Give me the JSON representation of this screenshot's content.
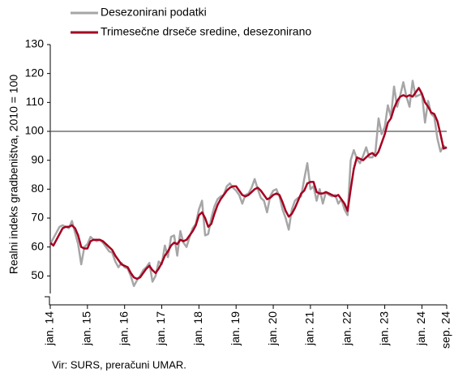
{
  "chart_data": {
    "type": "line",
    "y_label": "Realni indeks gradbeništva, 2010 = 100",
    "source": "Vir: SURS, preračuni UMAR.",
    "categories": [
      "jan. 14",
      null,
      null,
      null,
      null,
      null,
      null,
      null,
      null,
      null,
      null,
      null,
      "jan. 15",
      null,
      null,
      null,
      null,
      null,
      null,
      null,
      null,
      null,
      null,
      null,
      "jan. 16",
      null,
      null,
      null,
      null,
      null,
      null,
      null,
      null,
      null,
      null,
      null,
      "jan. 17",
      null,
      null,
      null,
      null,
      null,
      null,
      null,
      null,
      null,
      null,
      null,
      "jan. 18",
      null,
      null,
      null,
      null,
      null,
      null,
      null,
      null,
      null,
      null,
      null,
      "jan. 19",
      null,
      null,
      null,
      null,
      null,
      null,
      null,
      null,
      null,
      null,
      null,
      "jan. 20",
      null,
      null,
      null,
      null,
      null,
      null,
      null,
      null,
      null,
      null,
      null,
      "jan. 21",
      null,
      null,
      null,
      null,
      null,
      null,
      null,
      null,
      null,
      null,
      null,
      "jan. 22",
      null,
      null,
      null,
      null,
      null,
      null,
      null,
      null,
      null,
      null,
      null,
      "jan. 23",
      null,
      null,
      null,
      null,
      null,
      null,
      null,
      null,
      null,
      null,
      null,
      "jan. 24",
      null,
      null,
      null,
      null,
      null,
      null,
      null,
      "sep. 24"
    ],
    "series": [
      {
        "name": "Desezonirani podatki",
        "color": "#a6a6a6",
        "values": [
          61,
          63,
          65,
          67,
          67.5,
          67,
          66.5,
          69,
          65,
          61,
          54,
          60,
          61,
          63.5,
          62.5,
          62,
          62.5,
          61.5,
          60,
          58.5,
          58,
          55,
          53,
          54.5,
          53,
          52.5,
          50,
          46.5,
          48.5,
          50,
          52,
          53,
          54.5,
          48,
          50,
          55,
          54,
          60.5,
          56.5,
          63.5,
          64,
          57,
          65.5,
          61.5,
          60,
          63.5,
          66.5,
          68,
          73,
          76,
          64,
          64.5,
          70,
          74,
          76.5,
          77.5,
          78,
          81,
          82,
          80.5,
          79.5,
          78,
          75,
          78,
          78.5,
          80.5,
          83.5,
          80,
          77,
          76,
          72,
          77.5,
          79.5,
          80,
          77.5,
          73,
          70,
          66,
          73,
          76,
          77,
          77.5,
          83.5,
          89,
          80,
          81,
          76,
          80,
          75,
          79,
          78,
          77.5,
          78,
          75,
          76.5,
          73,
          71,
          90,
          93.5,
          90.5,
          89,
          91.5,
          94.5,
          91,
          91,
          93,
          104.5,
          99,
          101.5,
          109,
          105,
          115.5,
          108.5,
          112.5,
          117,
          112,
          108.5,
          117.5,
          112,
          112.5,
          113,
          103,
          110.5,
          106,
          105,
          97.5,
          93,
          95,
          94
        ]
      },
      {
        "name": "Trimesečne drseče sredine, desezonirano",
        "color": "#a50021",
        "values": [
          61.5,
          60.5,
          62.5,
          64.5,
          66.5,
          67,
          67,
          67.5,
          66.5,
          64,
          60,
          59.5,
          59.5,
          62,
          62.5,
          62.5,
          62.5,
          62,
          61,
          60,
          59,
          57,
          55.5,
          54,
          53.5,
          53,
          51,
          49.5,
          49,
          49.5,
          51,
          52.5,
          53.5,
          52,
          51,
          52.5,
          54.5,
          57,
          58.5,
          60.5,
          61.5,
          61,
          62.5,
          62,
          62.5,
          64,
          65.5,
          67.5,
          71,
          72,
          70,
          67,
          68,
          71.5,
          74.5,
          76.5,
          78,
          79.5,
          80.5,
          81,
          81,
          79.5,
          78,
          77.5,
          78,
          79,
          80,
          80.5,
          79.5,
          78,
          76.5,
          77,
          78,
          78.5,
          78,
          75.5,
          72.5,
          70.5,
          71.5,
          73.5,
          76,
          78.5,
          79.5,
          82,
          82.5,
          82.5,
          79,
          78.5,
          78.5,
          79,
          78.5,
          78,
          77.5,
          78,
          76.5,
          75,
          72.5,
          80,
          87,
          91,
          90.5,
          90,
          91,
          92,
          92.5,
          91.5,
          93,
          96,
          99,
          103,
          104.5,
          108,
          110.5,
          112,
          112.5,
          112,
          112.5,
          112,
          113.5,
          115,
          113,
          110,
          108.5,
          106.5,
          106,
          103.5,
          99,
          94,
          94.5
        ]
      }
    ],
    "ylim": [
      40,
      130
    ],
    "yticks": [
      50,
      60,
      70,
      80,
      90,
      100,
      110,
      120,
      130
    ],
    "reference_line": 100
  }
}
